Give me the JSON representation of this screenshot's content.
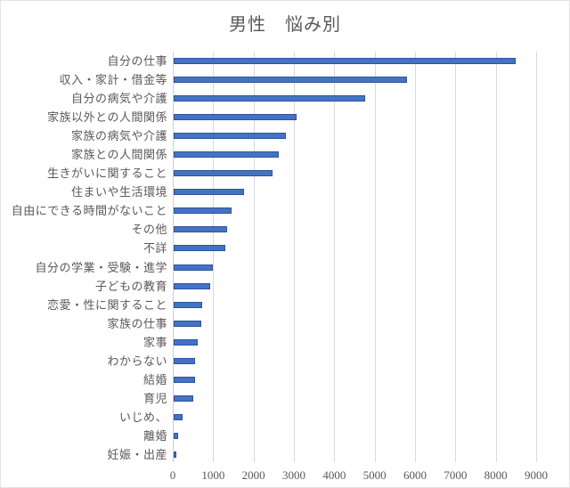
{
  "chart_data": {
    "type": "bar",
    "orientation": "horizontal",
    "title": "男性　悩み別",
    "categories": [
      "自分の仕事",
      "収入・家計・借金等",
      "自分の病気や介護",
      "家族以外との人間関係",
      "家族の病気や介護",
      "家族との人間関係",
      "生きがいに関すること",
      "住まいや生活環境",
      "自由にできる時間がないこと",
      "その他",
      "不詳",
      "自分の学業・受験・進学",
      "子どもの教育",
      "恋愛・性に関すること",
      "家族の仕事",
      "家事",
      "わからない",
      "結婚",
      "育児",
      "いじめ、",
      "離婚",
      "妊娠・出産"
    ],
    "values": [
      8460,
      5770,
      4740,
      3050,
      2780,
      2610,
      2450,
      1740,
      1430,
      1320,
      1290,
      980,
      900,
      710,
      680,
      600,
      540,
      530,
      480,
      230,
      120,
      60
    ],
    "xlabel": "",
    "ylabel": "",
    "xlim": [
      0,
      9000
    ],
    "xticks": [
      0,
      1000,
      2000,
      3000,
      4000,
      5000,
      6000,
      7000,
      8000,
      9000
    ],
    "grid": "vertical",
    "legend": "none",
    "colors": {
      "bar_fill": "#4472c4",
      "bar_border": "#2f5597",
      "gridline": "#d9d9d9",
      "axis_line": "#cfcfcf",
      "text": "#595959"
    }
  }
}
